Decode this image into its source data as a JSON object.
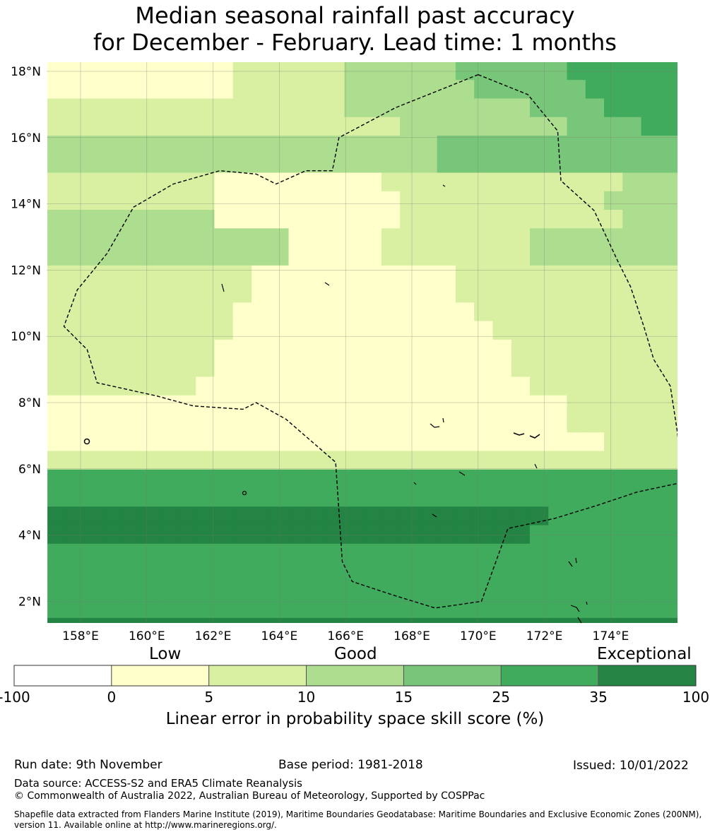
{
  "title": {
    "line1": "Median seasonal rainfall past accuracy",
    "line2": "for December - February. Lead time: 1 months"
  },
  "map": {
    "lat_range": [
      1.4,
      18.3
    ],
    "lon_range": [
      157.0,
      176.0
    ],
    "lat_ticks": [
      {
        "value": 18,
        "label": "18°N"
      },
      {
        "value": 16,
        "label": "16°N"
      },
      {
        "value": 14,
        "label": "14°N"
      },
      {
        "value": 12,
        "label": "12°N"
      },
      {
        "value": 10,
        "label": "10°N"
      },
      {
        "value": 8,
        "label": "8°N"
      },
      {
        "value": 6,
        "label": "6°N"
      },
      {
        "value": 4,
        "label": "4°N"
      },
      {
        "value": 2,
        "label": "2°N"
      }
    ],
    "lon_ticks": [
      {
        "value": 158,
        "label": "158°E"
      },
      {
        "value": 160,
        "label": "160°E"
      },
      {
        "value": 162,
        "label": "162°E"
      },
      {
        "value": 164,
        "label": "164°E"
      },
      {
        "value": 166,
        "label": "166°E"
      },
      {
        "value": 168,
        "label": "168°E"
      },
      {
        "value": 170,
        "label": "170°E"
      },
      {
        "value": 172,
        "label": "172°E"
      },
      {
        "value": 174,
        "label": "174°E"
      }
    ],
    "grid_lat_start": 18.3,
    "grid_lon_start": 157.0,
    "grid_cell_deg": 0.56,
    "skill_grid_rows": [
      "000000000011111122222233333344444422222233",
      "000000000011111122222223333334444444332222",
      "111111111111111122222222223333444444433222",
      "111111111111111111122222222233334444444422",
      "222222222222222222222333333333333334444422",
      "222222222222222222222333333333333333333442",
      "111111111000000000111111111111122222222211",
      "111111111000000000011111111111222222222211",
      "222222222000000000011111111111122222222211",
      "222222222222200000111111112222222222222211",
      "222222222222200000111111112222222222222211",
      "111111111110000000000011111111111111111111",
      "111111111110000000000011111111111111111111",
      "111111111100000000000001111111111111111111",
      "111111111100000000000000111111111111111111",
      "111111111000000000000000011111111111111111",
      "111111111000000000000000011111111111111111",
      "111111110000000000000000001111111111111111",
      "000000000000000000000000000011111111111111",
      "000000000000000000000000000011111111111111",
      "000000000000000000000000000000111111111111",
      "111111111111111111111111111111111111111111",
      "444444444444444444444444444444444444444444",
      "444444444444444444444444444444444444444444",
      "555555555555555555555555555444444444444444",
      "555555555555555555555555554444444444444444",
      "444444444444444444444444444444444444444444",
      "444444444444444444444444444444444444444444",
      "444444444444444444444444444444444444444444",
      "444444444444444444444444444444444444444444",
      "555555555555555555555555555555555555555555",
      "555555555555555555555555555555555555555555"
    ],
    "boundary_lonlat": [
      [
        170.0,
        17.9
      ],
      [
        171.5,
        17.3
      ],
      [
        172.4,
        16.2
      ],
      [
        172.5,
        14.7
      ],
      [
        173.5,
        13.8
      ],
      [
        174.2,
        12.3
      ],
      [
        174.6,
        11.5
      ],
      [
        175.0,
        10.3
      ],
      [
        175.3,
        9.3
      ],
      [
        175.8,
        8.5
      ],
      [
        176.0,
        7.2
      ],
      [
        176.2,
        5.6
      ],
      [
        174.8,
        5.3
      ],
      [
        173.6,
        4.9
      ],
      [
        172.3,
        4.5
      ],
      [
        170.9,
        4.2
      ],
      [
        170.1,
        2.0
      ],
      [
        168.7,
        1.8
      ],
      [
        167.4,
        2.2
      ],
      [
        166.2,
        2.6
      ],
      [
        165.9,
        3.2
      ],
      [
        165.7,
        6.2
      ],
      [
        164.2,
        7.5
      ],
      [
        163.3,
        8.0
      ],
      [
        162.9,
        7.8
      ],
      [
        161.4,
        7.9
      ],
      [
        160.3,
        8.2
      ],
      [
        158.5,
        8.6
      ],
      [
        158.2,
        9.6
      ],
      [
        157.5,
        10.3
      ],
      [
        157.9,
        11.4
      ],
      [
        158.8,
        12.5
      ],
      [
        159.6,
        13.9
      ],
      [
        160.8,
        14.6
      ],
      [
        162.2,
        15.0
      ],
      [
        163.3,
        14.9
      ],
      [
        163.9,
        14.6
      ],
      [
        164.8,
        15.0
      ],
      [
        165.6,
        15.0
      ],
      [
        165.8,
        16.0
      ],
      [
        167.5,
        16.9
      ],
      [
        169.0,
        17.5
      ],
      [
        170.0,
        17.9
      ]
    ]
  },
  "colorbar": {
    "colors": [
      "#ffffff",
      "#ffffcc",
      "#d9f0a3",
      "#addd8e",
      "#78c679",
      "#41ab5d",
      "#238443"
    ],
    "tick_labels": [
      "-100",
      "0",
      "5",
      "10",
      "15",
      "25",
      "35",
      "100"
    ],
    "category_low": "Low",
    "category_good": "Good",
    "category_exceptional": "Exceptional",
    "xlabel": "Linear error in probability space skill score (%)"
  },
  "footer": {
    "run_date": "Run date: 9th November",
    "base_period": "Base period: 1981-2018",
    "issued": "Issued: 10/01/2022",
    "data_source": "Data source: ACCESS-S2 and ERA5 Climate Reanalysis",
    "copyright": "© Commonwealth of Australia 2022, Australian Bureau of Meteorology, Supported by COSPPac",
    "shapefile_line1": "Shapefile data extracted from Flanders Marine Institute (2019), Maritime Boundaries Geodatabase: Maritime Boundaries and Exclusive Economic Zones (200NM),",
    "shapefile_line2": "version 11. Available online at http://www.marineregions.org/."
  }
}
